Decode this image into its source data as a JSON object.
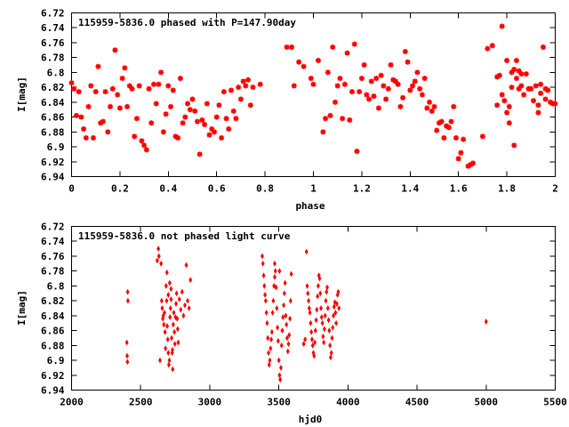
{
  "chart_data": [
    {
      "type": "scatter",
      "title": "115959-5836.0 phased with P=147.90day",
      "xlabel": "phase",
      "ylabel": "I[mag]",
      "xlim": [
        0,
        2
      ],
      "ylim": [
        6.72,
        6.94
      ],
      "y_inverted": true,
      "marker": "star",
      "color": "#ff0000",
      "xticks": [
        "0",
        "0.2",
        "0.4",
        "0.6",
        "0.8",
        "1",
        "1.2",
        "1.4",
        "1.6",
        "1.8",
        "2"
      ],
      "yticks": [
        "6.72",
        "6.74",
        "6.76",
        "6.78",
        "6.8",
        "6.82",
        "6.84",
        "6.86",
        "6.88",
        "6.9",
        "6.92",
        "6.94"
      ],
      "grid": false,
      "legend": "none",
      "points": [
        [
          0.0,
          6.814
        ],
        [
          0.01,
          6.822
        ],
        [
          0.02,
          6.858
        ],
        [
          0.03,
          6.826
        ],
        [
          0.04,
          6.86
        ],
        [
          0.05,
          6.876
        ],
        [
          0.06,
          6.888
        ],
        [
          0.07,
          6.846
        ],
        [
          0.08,
          6.818
        ],
        [
          0.09,
          6.888
        ],
        [
          0.1,
          6.826
        ],
        [
          0.11,
          6.792
        ],
        [
          0.12,
          6.868
        ],
        [
          0.13,
          6.866
        ],
        [
          0.14,
          6.826
        ],
        [
          0.15,
          6.88
        ],
        [
          0.16,
          6.846
        ],
        [
          0.17,
          6.822
        ],
        [
          0.18,
          6.77
        ],
        [
          0.19,
          6.83
        ],
        [
          0.2,
          6.848
        ],
        [
          0.21,
          6.808
        ],
        [
          0.22,
          6.794
        ],
        [
          0.23,
          6.846
        ],
        [
          0.24,
          6.818
        ],
        [
          0.25,
          6.822
        ],
        [
          0.26,
          6.886
        ],
        [
          0.27,
          6.862
        ],
        [
          0.28,
          6.818
        ],
        [
          0.29,
          6.892
        ],
        [
          0.3,
          6.898
        ],
        [
          0.31,
          6.904
        ],
        [
          0.32,
          6.822
        ],
        [
          0.33,
          6.868
        ],
        [
          0.34,
          6.816
        ],
        [
          0.35,
          6.842
        ],
        [
          0.36,
          6.816
        ],
        [
          0.37,
          6.8
        ],
        [
          0.38,
          6.88
        ],
        [
          0.39,
          6.856
        ],
        [
          0.4,
          6.818
        ],
        [
          0.41,
          6.846
        ],
        [
          0.42,
          6.824
        ],
        [
          0.43,
          6.886
        ],
        [
          0.44,
          6.888
        ],
        [
          0.45,
          6.808
        ],
        [
          0.46,
          6.868
        ],
        [
          0.47,
          6.86
        ],
        [
          0.48,
          6.842
        ],
        [
          0.49,
          6.85
        ],
        [
          0.5,
          6.836
        ],
        [
          0.51,
          6.852
        ],
        [
          0.52,
          6.866
        ],
        [
          0.53,
          6.91
        ],
        [
          0.54,
          6.864
        ],
        [
          0.55,
          6.87
        ],
        [
          0.56,
          6.842
        ],
        [
          0.57,
          6.884
        ],
        [
          0.58,
          6.876
        ],
        [
          0.59,
          6.88
        ],
        [
          0.6,
          6.86
        ],
        [
          0.61,
          6.844
        ],
        [
          0.62,
          6.888
        ],
        [
          0.63,
          6.826
        ],
        [
          0.64,
          6.862
        ],
        [
          0.65,
          6.876
        ],
        [
          0.66,
          6.824
        ],
        [
          0.67,
          6.852
        ],
        [
          0.68,
          6.862
        ],
        [
          0.69,
          6.82
        ],
        [
          0.7,
          6.836
        ],
        [
          0.71,
          6.812
        ],
        [
          0.72,
          6.818
        ],
        [
          0.73,
          6.81
        ],
        [
          0.74,
          6.844
        ],
        [
          0.75,
          6.82
        ],
        [
          0.78,
          6.816
        ],
        [
          0.89,
          6.766
        ],
        [
          0.91,
          6.766
        ],
        [
          0.92,
          6.818
        ],
        [
          0.94,
          6.786
        ],
        [
          0.96,
          6.792
        ],
        [
          0.99,
          6.808
        ],
        [
          1.0,
          6.816
        ],
        [
          1.02,
          6.784
        ],
        [
          1.04,
          6.88
        ],
        [
          1.05,
          6.862
        ],
        [
          1.06,
          6.8
        ],
        [
          1.07,
          6.858
        ],
        [
          1.08,
          6.766
        ],
        [
          1.09,
          6.84
        ],
        [
          1.1,
          6.818
        ],
        [
          1.11,
          6.808
        ],
        [
          1.12,
          6.862
        ],
        [
          1.13,
          6.816
        ],
        [
          1.14,
          6.774
        ],
        [
          1.15,
          6.864
        ],
        [
          1.16,
          6.826
        ],
        [
          1.17,
          6.762
        ],
        [
          1.18,
          6.906
        ],
        [
          1.19,
          6.826
        ],
        [
          1.2,
          6.808
        ],
        [
          1.21,
          6.79
        ],
        [
          1.22,
          6.83
        ],
        [
          1.23,
          6.836
        ],
        [
          1.24,
          6.812
        ],
        [
          1.25,
          6.832
        ],
        [
          1.26,
          6.808
        ],
        [
          1.27,
          6.848
        ],
        [
          1.28,
          6.804
        ],
        [
          1.29,
          6.818
        ],
        [
          1.3,
          6.836
        ],
        [
          1.31,
          6.822
        ],
        [
          1.32,
          6.79
        ],
        [
          1.33,
          6.81
        ],
        [
          1.34,
          6.812
        ],
        [
          1.35,
          6.816
        ],
        [
          1.36,
          6.846
        ],
        [
          1.37,
          6.834
        ],
        [
          1.38,
          6.772
        ],
        [
          1.39,
          6.786
        ],
        [
          1.4,
          6.824
        ],
        [
          1.41,
          6.818
        ],
        [
          1.42,
          6.812
        ],
        [
          1.43,
          6.8
        ],
        [
          1.44,
          6.822
        ],
        [
          1.45,
          6.83
        ],
        [
          1.46,
          6.808
        ],
        [
          1.47,
          6.848
        ],
        [
          1.48,
          6.84
        ],
        [
          1.49,
          6.852
        ],
        [
          1.5,
          6.846
        ],
        [
          1.51,
          6.878
        ],
        [
          1.52,
          6.868
        ],
        [
          1.53,
          6.866
        ],
        [
          1.54,
          6.888
        ],
        [
          1.55,
          6.872
        ],
        [
          1.56,
          6.874
        ],
        [
          1.57,
          6.866
        ],
        [
          1.58,
          6.846
        ],
        [
          1.59,
          6.888
        ],
        [
          1.6,
          6.916
        ],
        [
          1.61,
          6.908
        ],
        [
          1.62,
          6.89
        ],
        [
          1.64,
          6.926
        ],
        [
          1.65,
          6.924
        ],
        [
          1.66,
          6.922
        ],
        [
          1.7,
          6.886
        ],
        [
          1.72,
          6.768
        ],
        [
          1.74,
          6.764
        ],
        [
          1.76,
          6.806
        ],
        [
          1.77,
          6.804
        ],
        [
          1.78,
          6.738
        ],
        [
          1.79,
          6.838
        ],
        [
          1.8,
          6.854
        ],
        [
          1.81,
          6.846
        ],
        [
          1.82,
          6.8
        ],
        [
          1.83,
          6.796
        ],
        [
          1.84,
          6.808
        ],
        [
          1.85,
          6.822
        ],
        [
          1.86,
          6.818
        ],
        [
          1.87,
          6.83
        ],
        [
          1.88,
          6.802
        ],
        [
          1.89,
          6.822
        ],
        [
          1.9,
          6.822
        ],
        [
          1.91,
          6.838
        ],
        [
          1.92,
          6.818
        ],
        [
          1.93,
          6.844
        ],
        [
          1.94,
          6.828
        ],
        [
          1.95,
          6.766
        ],
        [
          1.96,
          6.822
        ],
        [
          1.97,
          6.824
        ],
        [
          1.98,
          6.84
        ],
        [
          1.99,
          6.842
        ],
        [
          2.0,
          6.842
        ],
        [
          1.76,
          6.844
        ],
        [
          1.81,
          6.868
        ],
        [
          1.82,
          6.82
        ],
        [
          1.84,
          6.784
        ],
        [
          1.85,
          6.798
        ],
        [
          1.86,
          6.802
        ],
        [
          1.83,
          6.898
        ],
        [
          1.8,
          6.784
        ],
        [
          1.78,
          6.83
        ],
        [
          1.96,
          6.836
        ],
        [
          1.94,
          6.816
        ],
        [
          1.93,
          6.854
        ]
      ]
    },
    {
      "type": "scatter",
      "title": "115959-5836.0 not phased light curve",
      "xlabel": "hjd0",
      "ylabel": "I[mag]",
      "xlim": [
        2000,
        5500
      ],
      "ylim": [
        6.72,
        6.94
      ],
      "y_inverted": true,
      "marker": "diamond",
      "color": "#ff0000",
      "xticks": [
        "2000",
        "2500",
        "3000",
        "3500",
        "4000",
        "4500",
        "5000",
        "5500"
      ],
      "yticks": [
        "6.72",
        "6.74",
        "6.76",
        "6.78",
        "6.8",
        "6.82",
        "6.84",
        "6.86",
        "6.88",
        "6.9",
        "6.92",
        "6.94"
      ],
      "grid": false,
      "legend": "none",
      "points": [
        [
          2400,
          6.876
        ],
        [
          2402,
          6.894
        ],
        [
          2404,
          6.902
        ],
        [
          2406,
          6.808
        ],
        [
          2408,
          6.82
        ],
        [
          2620,
          6.766
        ],
        [
          2628,
          6.75
        ],
        [
          2632,
          6.76
        ],
        [
          2640,
          6.9
        ],
        [
          2648,
          6.77
        ],
        [
          2652,
          6.82
        ],
        [
          2656,
          6.83
        ],
        [
          2660,
          6.844
        ],
        [
          2664,
          6.84
        ],
        [
          2668,
          6.852
        ],
        [
          2672,
          6.836
        ],
        [
          2676,
          6.862
        ],
        [
          2680,
          6.884
        ],
        [
          2684,
          6.8
        ],
        [
          2688,
          6.82
        ],
        [
          2692,
          6.854
        ],
        [
          2696,
          6.872
        ],
        [
          2700,
          6.89
        ],
        [
          2704,
          6.906
        ],
        [
          2708,
          6.9
        ],
        [
          2712,
          6.842
        ],
        [
          2716,
          6.83
        ],
        [
          2720,
          6.818
        ],
        [
          2724,
          6.87
        ],
        [
          2728,
          6.89
        ],
        [
          2732,
          6.912
        ],
        [
          2736,
          6.852
        ],
        [
          2740,
          6.836
        ],
        [
          2744,
          6.862
        ],
        [
          2748,
          6.878
        ],
        [
          2752,
          6.842
        ],
        [
          2756,
          6.824
        ],
        [
          2760,
          6.81
        ],
        [
          2764,
          6.844
        ],
        [
          2768,
          6.858
        ],
        [
          2772,
          6.876
        ],
        [
          2780,
          6.818
        ],
        [
          2790,
          6.832
        ],
        [
          2800,
          6.808
        ],
        [
          2810,
          6.84
        ],
        [
          2820,
          6.826
        ],
        [
          2830,
          6.772
        ],
        [
          2840,
          6.82
        ],
        [
          2850,
          6.83
        ],
        [
          2860,
          6.792
        ],
        [
          2690,
          6.782
        ],
        [
          2700,
          6.812
        ],
        [
          2710,
          6.796
        ],
        [
          2720,
          6.804
        ],
        [
          2730,
          6.886
        ],
        [
          3380,
          6.76
        ],
        [
          3385,
          6.77
        ],
        [
          3390,
          6.786
        ],
        [
          3395,
          6.8
        ],
        [
          3400,
          6.812
        ],
        [
          3405,
          6.82
        ],
        [
          3410,
          6.836
        ],
        [
          3415,
          6.85
        ],
        [
          3420,
          6.87
        ],
        [
          3425,
          6.89
        ],
        [
          3430,
          6.906
        ],
        [
          3435,
          6.9
        ],
        [
          3440,
          6.884
        ],
        [
          3445,
          6.872
        ],
        [
          3450,
          6.862
        ],
        [
          3455,
          6.836
        ],
        [
          3460,
          6.82
        ],
        [
          3465,
          6.8
        ],
        [
          3470,
          6.788
        ],
        [
          3475,
          6.78
        ],
        [
          3480,
          6.802
        ],
        [
          3485,
          6.83
        ],
        [
          3490,
          6.856
        ],
        [
          3495,
          6.874
        ],
        [
          3500,
          6.9
        ],
        [
          3505,
          6.92
        ],
        [
          3510,
          6.926
        ],
        [
          3515,
          6.91
        ],
        [
          3520,
          6.88
        ],
        [
          3525,
          6.86
        ],
        [
          3530,
          6.842
        ],
        [
          3535,
          6.826
        ],
        [
          3540,
          6.81
        ],
        [
          3545,
          6.796
        ],
        [
          3550,
          6.84
        ],
        [
          3555,
          6.852
        ],
        [
          3560,
          6.87
        ],
        [
          3565,
          6.888
        ],
        [
          3570,
          6.878
        ],
        [
          3575,
          6.866
        ],
        [
          3580,
          6.844
        ],
        [
          3585,
          6.82
        ],
        [
          3590,
          6.784
        ],
        [
          3470,
          6.77
        ],
        [
          3505,
          6.78
        ],
        [
          3700,
          6.754
        ],
        [
          3705,
          6.8
        ],
        [
          3710,
          6.81
        ],
        [
          3715,
          6.82
        ],
        [
          3720,
          6.83
        ],
        [
          3725,
          6.836
        ],
        [
          3730,
          6.85
        ],
        [
          3735,
          6.862
        ],
        [
          3740,
          6.872
        ],
        [
          3745,
          6.88
        ],
        [
          3750,
          6.89
        ],
        [
          3755,
          6.894
        ],
        [
          3760,
          6.876
        ],
        [
          3765,
          6.86
        ],
        [
          3770,
          6.846
        ],
        [
          3775,
          6.832
        ],
        [
          3780,
          6.814
        ],
        [
          3785,
          6.8
        ],
        [
          3790,
          6.786
        ],
        [
          3795,
          6.79
        ],
        [
          3800,
          6.81
        ],
        [
          3805,
          6.83
        ],
        [
          3810,
          6.842
        ],
        [
          3815,
          6.85
        ],
        [
          3820,
          6.868
        ],
        [
          3825,
          6.876
        ],
        [
          3830,
          6.858
        ],
        [
          3835,
          6.84
        ],
        [
          3840,
          6.82
        ],
        [
          3845,
          6.808
        ],
        [
          3850,
          6.802
        ],
        [
          3855,
          6.83
        ],
        [
          3860,
          6.846
        ],
        [
          3865,
          6.86
        ],
        [
          3870,
          6.88
        ],
        [
          3875,
          6.896
        ],
        [
          3880,
          6.89
        ],
        [
          3885,
          6.87
        ],
        [
          3890,
          6.856
        ],
        [
          3895,
          6.84
        ],
        [
          3900,
          6.828
        ],
        [
          3905,
          6.822
        ],
        [
          3910,
          6.836
        ],
        [
          3915,
          6.85
        ],
        [
          3920,
          6.824
        ],
        [
          3925,
          6.812
        ],
        [
          3930,
          6.808
        ],
        [
          3935,
          6.83
        ],
        [
          3690,
          6.872
        ],
        [
          3680,
          6.878
        ],
        [
          5000,
          6.848
        ]
      ]
    }
  ]
}
